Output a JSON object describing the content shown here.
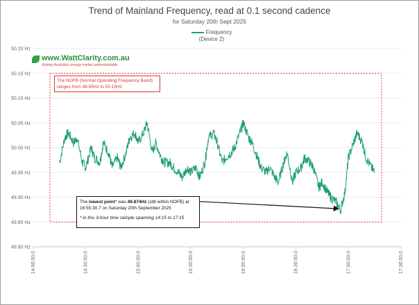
{
  "chart_data": {
    "type": "line",
    "title": "Trend of Mainland Frequency, read at 0.1 second cadence",
    "subtitle": "for Saturday 20th Sept 2025",
    "series": [
      {
        "name": "Frequency",
        "name_sub": "(Device 2)",
        "color": "#1e9e76",
        "x": [
          "14:15",
          "14:18",
          "14:20",
          "14:23",
          "14:25",
          "14:28",
          "14:30",
          "14:33",
          "14:35",
          "14:38",
          "14:40",
          "14:43",
          "14:45",
          "14:48",
          "14:50",
          "14:53",
          "14:55",
          "14:58",
          "15:00",
          "15:03",
          "15:05",
          "15:08",
          "15:10",
          "15:13",
          "15:15",
          "15:18",
          "15:20",
          "15:23",
          "15:25",
          "15:28",
          "15:30",
          "15:33",
          "15:35",
          "15:38",
          "15:40",
          "15:43",
          "15:45",
          "15:48",
          "15:50",
          "15:53",
          "15:55",
          "15:58",
          "16:00",
          "16:03",
          "16:05",
          "16:08",
          "16:10",
          "16:13",
          "16:15",
          "16:18",
          "16:20",
          "16:23",
          "16:25",
          "16:28",
          "16:30",
          "16:33",
          "16:35",
          "16:38",
          "16:40",
          "16:43",
          "16:45",
          "16:48",
          "16:50",
          "16:53",
          "16:55:30.7",
          "16:58",
          "17:00",
          "17:03",
          "17:05",
          "17:08",
          "17:10",
          "17:13",
          "17:15"
        ],
        "values": [
          49.97,
          50.02,
          50.03,
          50.01,
          50.02,
          49.97,
          49.96,
          50.0,
          49.98,
          49.97,
          50.01,
          49.99,
          49.96,
          49.98,
          49.96,
          49.99,
          50.02,
          50.03,
          50.01,
          50.03,
          50.05,
          49.99,
          50.01,
          49.98,
          49.97,
          49.97,
          49.96,
          49.95,
          49.94,
          49.96,
          49.95,
          49.96,
          49.94,
          49.97,
          50.02,
          50.03,
          50.01,
          49.97,
          49.98,
          49.99,
          50.0,
          50.03,
          50.05,
          50.02,
          50.01,
          49.98,
          49.96,
          49.95,
          49.96,
          49.94,
          49.93,
          49.97,
          49.99,
          49.93,
          49.95,
          49.96,
          49.98,
          49.97,
          49.96,
          49.92,
          49.93,
          49.91,
          49.9,
          49.89,
          49.874,
          49.91,
          49.98,
          50.01,
          50.03,
          50.01,
          49.98,
          49.96,
          49.95
        ]
      }
    ],
    "ylim": [
      49.8,
      50.2
    ],
    "yticks": [
      "50.20 Hz",
      "50.15 Hz",
      "50.10 Hz",
      "50.05 Hz",
      "50.00 Hz",
      "49.95 Hz",
      "49.90 Hz",
      "49.85 Hz",
      "49.80 Hz"
    ],
    "xlim": [
      "14:00",
      "17:30"
    ],
    "xticks": [
      "14:00:00.0",
      "14:30:00.0",
      "15:00:00.0",
      "15:30:00.0",
      "16:00:00.0",
      "16:30:00.0",
      "17:00:00.0",
      "17:30:00.0"
    ],
    "grid": "horizontal",
    "legend_position": "top-center",
    "nofb_band": [
      49.85,
      50.15
    ],
    "annotations": {
      "nofb_line1": "The NOFB  (Normal Operating Frequency Band)",
      "nofb_line2": "ranges from 49.85Hz to 50.15Hz",
      "lowest_a": "The ",
      "lowest_b": "lowest point",
      "lowest_c": "* was ",
      "lowest_d": "49.874Hz",
      "lowest_e": " (still within NOFB) at",
      "lowest_line2": "16:55:30.7 on Saturday 20th September 2025",
      "lowest_foot": "* in this 3-hour time sample spanning 14:15 to 17:15"
    }
  },
  "logo": {
    "text": "www.WattClarity.com.au",
    "tagline": "Making Australia's energy market understandable"
  }
}
